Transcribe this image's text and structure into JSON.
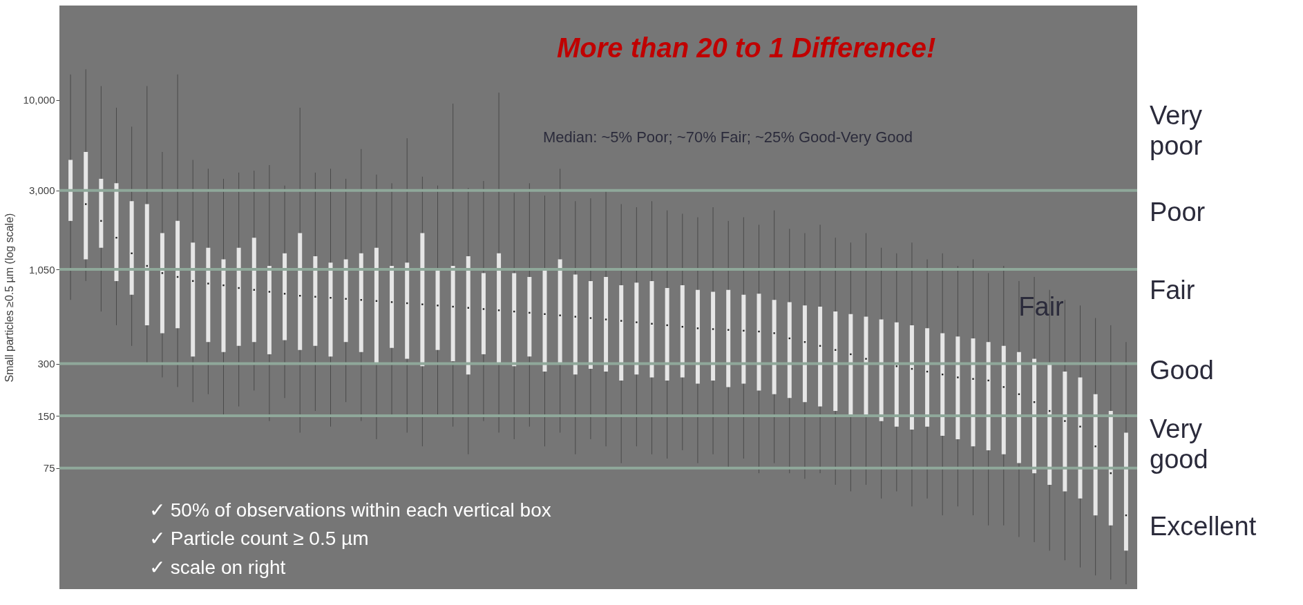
{
  "chart_data": {
    "type": "box",
    "ylabel": "Small particles ≥0.5 µm (log scale)",
    "categories": [
      null,
      null,
      null,
      null,
      null,
      null,
      null,
      null,
      null,
      null,
      null,
      null,
      null,
      null,
      null,
      null,
      null,
      null,
      null,
      null,
      null,
      null,
      null,
      null,
      null,
      null,
      null,
      null,
      null,
      null,
      null,
      null,
      null,
      null,
      null,
      null,
      null,
      null,
      null,
      null,
      null,
      null,
      null,
      null,
      null,
      null,
      null,
      null,
      null,
      null,
      null,
      null,
      null,
      null,
      null,
      null,
      null,
      null,
      null,
      null,
      null,
      null,
      null,
      null,
      null,
      null,
      null,
      null,
      null,
      null
    ],
    "log": "y",
    "ylim": [
      15,
      35000
    ],
    "yticks": [
      75,
      150,
      300,
      {
        "value": 1050,
        "label": "1,050"
      },
      {
        "value": 3000,
        "label": "3,000"
      },
      {
        "value": 10000,
        "label": "10,000"
      }
    ],
    "tick_labels": "y",
    "grid": false,
    "series": [
      {
        "color": "#e6e6e6",
        "boxes": [
          {
            "low": 700,
            "q1": 2000,
            "median": 3000,
            "q3": 4500,
            "high": 14000
          },
          {
            "low": 900,
            "q1": 1200,
            "median": 2500,
            "q3": 5000,
            "high": 15000
          },
          {
            "low": 600,
            "q1": 1400,
            "median": 2000,
            "q3": 3500,
            "high": 12000
          },
          {
            "low": 500,
            "q1": 900,
            "median": 1600,
            "q3": 3300,
            "high": 9000
          },
          {
            "low": 380,
            "q1": 750,
            "median": 1300,
            "q3": 2600,
            "high": 7000
          },
          {
            "low": 300,
            "q1": 500,
            "median": 1100,
            "q3": 2500,
            "high": 12000
          },
          {
            "low": 250,
            "q1": 450,
            "median": 1000,
            "q3": 1700,
            "high": 5000
          },
          {
            "low": 220,
            "q1": 480,
            "median": 950,
            "q3": 2000,
            "high": 14000
          },
          {
            "low": 180,
            "q1": 330,
            "median": 900,
            "q3": 1500,
            "high": 4500
          },
          {
            "low": 200,
            "q1": 400,
            "median": 870,
            "q3": 1400,
            "high": 4000
          },
          {
            "low": 150,
            "q1": 350,
            "median": 850,
            "q3": 1200,
            "high": 3500
          },
          {
            "low": 170,
            "q1": 380,
            "median": 820,
            "q3": 1400,
            "high": 3800
          },
          {
            "low": 210,
            "q1": 400,
            "median": 800,
            "q3": 1600,
            "high": 3900
          },
          {
            "low": 140,
            "q1": 340,
            "median": 780,
            "q3": 1100,
            "high": 4200
          },
          {
            "low": 190,
            "q1": 410,
            "median": 760,
            "q3": 1300,
            "high": 3200
          },
          {
            "low": 120,
            "q1": 360,
            "median": 740,
            "q3": 1700,
            "high": 9000
          },
          {
            "low": 160,
            "q1": 380,
            "median": 730,
            "q3": 1250,
            "high": 3800
          },
          {
            "low": 130,
            "q1": 330,
            "median": 720,
            "q3": 1150,
            "high": 4000
          },
          {
            "low": 180,
            "q1": 400,
            "median": 710,
            "q3": 1200,
            "high": 3500
          },
          {
            "low": 140,
            "q1": 350,
            "median": 700,
            "q3": 1300,
            "high": 5200
          },
          {
            "low": 110,
            "q1": 300,
            "median": 690,
            "q3": 1400,
            "high": 3700
          },
          {
            "low": 150,
            "q1": 370,
            "median": 680,
            "q3": 1100,
            "high": 3300
          },
          {
            "low": 120,
            "q1": 320,
            "median": 670,
            "q3": 1150,
            "high": 6000
          },
          {
            "low": 100,
            "q1": 290,
            "median": 660,
            "q3": 1700,
            "high": 3600
          },
          {
            "low": 150,
            "q1": 360,
            "median": 650,
            "q3": 1050,
            "high": 3200
          },
          {
            "low": 130,
            "q1": 310,
            "median": 640,
            "q3": 1100,
            "high": 9500
          },
          {
            "low": 90,
            "q1": 260,
            "median": 630,
            "q3": 1250,
            "high": 3100
          },
          {
            "low": 140,
            "q1": 340,
            "median": 620,
            "q3": 1000,
            "high": 3400
          },
          {
            "low": 120,
            "q1": 300,
            "median": 610,
            "q3": 1300,
            "high": 11000
          },
          {
            "low": 110,
            "q1": 290,
            "median": 600,
            "q3": 1000,
            "high": 2900
          },
          {
            "low": 130,
            "q1": 330,
            "median": 590,
            "q3": 950,
            "high": 3300
          },
          {
            "low": 100,
            "q1": 270,
            "median": 580,
            "q3": 1050,
            "high": 2800
          },
          {
            "low": 120,
            "q1": 300,
            "median": 570,
            "q3": 1200,
            "high": 4000
          },
          {
            "low": 90,
            "q1": 260,
            "median": 560,
            "q3": 980,
            "high": 2600
          },
          {
            "low": 110,
            "q1": 280,
            "median": 550,
            "q3": 900,
            "high": 2700
          },
          {
            "low": 100,
            "q1": 270,
            "median": 540,
            "q3": 950,
            "high": 3000
          },
          {
            "low": 80,
            "q1": 240,
            "median": 530,
            "q3": 850,
            "high": 2500
          },
          {
            "low": 100,
            "q1": 260,
            "median": 520,
            "q3": 880,
            "high": 2400
          },
          {
            "low": 90,
            "q1": 250,
            "median": 510,
            "q3": 900,
            "high": 2600
          },
          {
            "low": 85,
            "q1": 240,
            "median": 500,
            "q3": 820,
            "high": 2300
          },
          {
            "low": 95,
            "q1": 250,
            "median": 490,
            "q3": 850,
            "high": 2200
          },
          {
            "low": 80,
            "q1": 230,
            "median": 480,
            "q3": 800,
            "high": 2100
          },
          {
            "low": 90,
            "q1": 240,
            "median": 475,
            "q3": 780,
            "high": 2400
          },
          {
            "low": 75,
            "q1": 220,
            "median": 470,
            "q3": 800,
            "high": 2000
          },
          {
            "low": 85,
            "q1": 230,
            "median": 465,
            "q3": 750,
            "high": 2100
          },
          {
            "low": 70,
            "q1": 210,
            "median": 460,
            "q3": 760,
            "high": 1900
          },
          {
            "low": 80,
            "q1": 200,
            "median": 450,
            "q3": 700,
            "high": 2300
          },
          {
            "low": 70,
            "q1": 190,
            "median": 420,
            "q3": 680,
            "high": 1800
          },
          {
            "low": 65,
            "q1": 180,
            "median": 400,
            "q3": 650,
            "high": 1700
          },
          {
            "low": 70,
            "q1": 170,
            "median": 380,
            "q3": 640,
            "high": 1900
          },
          {
            "low": 60,
            "q1": 160,
            "median": 360,
            "q3": 600,
            "high": 1600
          },
          {
            "low": 55,
            "q1": 150,
            "median": 340,
            "q3": 580,
            "high": 1500
          },
          {
            "low": 60,
            "q1": 150,
            "median": 320,
            "q3": 560,
            "high": 1700
          },
          {
            "low": 50,
            "q1": 140,
            "median": 300,
            "q3": 540,
            "high": 1400
          },
          {
            "low": 55,
            "q1": 130,
            "median": 290,
            "q3": 520,
            "high": 1300
          },
          {
            "low": 45,
            "q1": 125,
            "median": 280,
            "q3": 500,
            "high": 1500
          },
          {
            "low": 50,
            "q1": 130,
            "median": 270,
            "q3": 480,
            "high": 1200
          },
          {
            "low": 40,
            "q1": 115,
            "median": 260,
            "q3": 450,
            "high": 1300
          },
          {
            "low": 45,
            "q1": 110,
            "median": 250,
            "q3": 430,
            "high": 1100
          },
          {
            "low": 40,
            "q1": 100,
            "median": 245,
            "q3": 420,
            "high": 1200
          },
          {
            "low": 35,
            "q1": 95,
            "median": 240,
            "q3": 400,
            "high": 1000
          },
          {
            "low": 35,
            "q1": 90,
            "median": 220,
            "q3": 380,
            "high": 1100
          },
          {
            "low": 30,
            "q1": 80,
            "median": 200,
            "q3": 350,
            "high": 900
          },
          {
            "low": 28,
            "q1": 70,
            "median": 180,
            "q3": 320,
            "high": 950
          },
          {
            "low": 25,
            "q1": 60,
            "median": 160,
            "q3": 300,
            "high": 800
          },
          {
            "low": 22,
            "q1": 55,
            "median": 140,
            "q3": 270,
            "high": 700
          },
          {
            "low": 20,
            "q1": 50,
            "median": 130,
            "q3": 250,
            "high": 650
          },
          {
            "low": 18,
            "q1": 40,
            "median": 100,
            "q3": 200,
            "high": 550
          },
          {
            "low": 17,
            "q1": 35,
            "median": 70,
            "q3": 160,
            "high": 500
          },
          {
            "low": 16,
            "q1": 25,
            "median": 40,
            "q3": 120,
            "high": 400
          }
        ]
      }
    ],
    "ref_lines": [
      {
        "axis": "y",
        "value": 3000,
        "color": "#8fa89a"
      },
      {
        "axis": "y",
        "value": 1050,
        "color": "#8fa89a"
      },
      {
        "axis": "y",
        "value": 300,
        "color": "#8fa89a"
      },
      {
        "axis": "y",
        "value": 150,
        "color": "#8fa89a"
      },
      {
        "axis": "y",
        "value": 75,
        "color": "#8fa89a"
      }
    ],
    "annotations": [
      "More than 20 to 1 Difference!",
      "Median: ~5% Poor; ~70% Fair; ~25% Good-Very Good",
      "Fair",
      "✓   50% of observations within each vertical box",
      "✓   Particle count ≥ 0.5 µm",
      "✓   scale on right",
      "Very poor",
      "Poor",
      "Fair",
      "Good",
      "Very good",
      "Excellent"
    ]
  }
}
